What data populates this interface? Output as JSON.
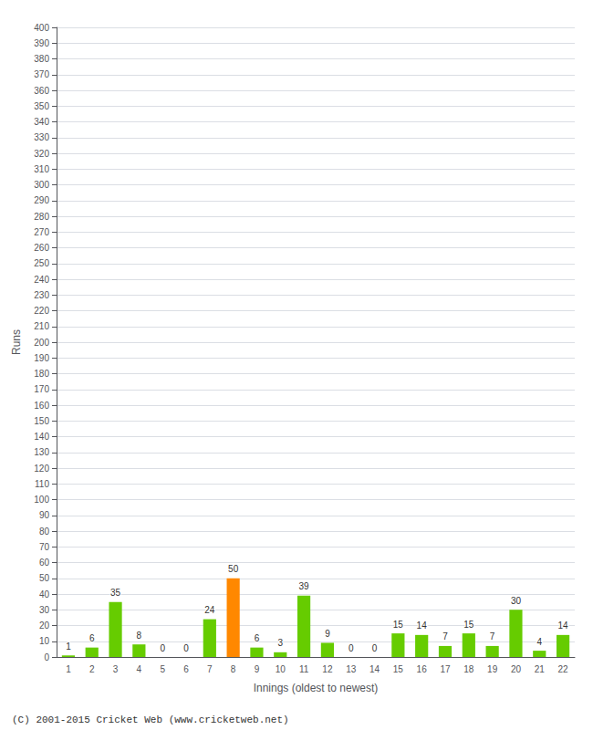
{
  "chart_data": {
    "type": "bar",
    "xlabel": "Innings (oldest to newest)",
    "ylabel": "Runs",
    "categories": [
      1,
      2,
      3,
      4,
      5,
      6,
      7,
      8,
      9,
      10,
      11,
      12,
      13,
      14,
      15,
      16,
      17,
      18,
      19,
      20,
      21,
      22
    ],
    "values": [
      1,
      6,
      35,
      8,
      0,
      0,
      24,
      50,
      6,
      3,
      39,
      9,
      0,
      0,
      15,
      14,
      7,
      15,
      7,
      30,
      4,
      14
    ],
    "colors": [
      "#66cc00",
      "#66cc00",
      "#66cc00",
      "#66cc00",
      "#66cc00",
      "#66cc00",
      "#66cc00",
      "#ff8800",
      "#66cc00",
      "#66cc00",
      "#66cc00",
      "#66cc00",
      "#66cc00",
      "#66cc00",
      "#66cc00",
      "#66cc00",
      "#66cc00",
      "#66cc00",
      "#66cc00",
      "#66cc00",
      "#66cc00",
      "#66cc00"
    ],
    "ylim": [
      0,
      400
    ],
    "yticks": [
      0,
      10,
      20,
      30,
      40,
      50,
      60,
      70,
      80,
      90,
      100,
      110,
      120,
      130,
      140,
      150,
      160,
      170,
      180,
      190,
      200,
      210,
      220,
      230,
      240,
      250,
      260,
      270,
      280,
      290,
      300,
      310,
      320,
      330,
      340,
      350,
      360,
      370,
      380,
      390,
      400
    ],
    "grid": true,
    "data_labels": true,
    "annotations": [
      "(C) 2001-2015 Cricket Web (www.cricketweb.net)"
    ]
  }
}
